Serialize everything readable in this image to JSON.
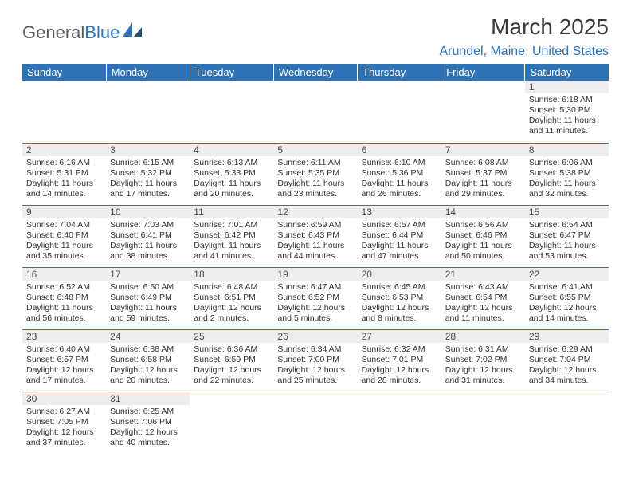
{
  "brand": {
    "part1": "General",
    "part2": "Blue"
  },
  "title": "March 2025",
  "location": "Arundel, Maine, United States",
  "colors": {
    "header_bg": "#2f72b5",
    "header_text": "#ffffff",
    "daynum_bg": "#eeeeee",
    "cell_border": "#2f72b5",
    "body_text": "#333333",
    "location_text": "#2f72b5"
  },
  "weekdays": [
    "Sunday",
    "Monday",
    "Tuesday",
    "Wednesday",
    "Thursday",
    "Friday",
    "Saturday"
  ],
  "weeks": [
    [
      null,
      null,
      null,
      null,
      null,
      null,
      {
        "n": "1",
        "sr": "Sunrise: 6:18 AM",
        "ss": "Sunset: 5:30 PM",
        "dl1": "Daylight: 11 hours",
        "dl2": "and 11 minutes."
      }
    ],
    [
      {
        "n": "2",
        "sr": "Sunrise: 6:16 AM",
        "ss": "Sunset: 5:31 PM",
        "dl1": "Daylight: 11 hours",
        "dl2": "and 14 minutes."
      },
      {
        "n": "3",
        "sr": "Sunrise: 6:15 AM",
        "ss": "Sunset: 5:32 PM",
        "dl1": "Daylight: 11 hours",
        "dl2": "and 17 minutes."
      },
      {
        "n": "4",
        "sr": "Sunrise: 6:13 AM",
        "ss": "Sunset: 5:33 PM",
        "dl1": "Daylight: 11 hours",
        "dl2": "and 20 minutes."
      },
      {
        "n": "5",
        "sr": "Sunrise: 6:11 AM",
        "ss": "Sunset: 5:35 PM",
        "dl1": "Daylight: 11 hours",
        "dl2": "and 23 minutes."
      },
      {
        "n": "6",
        "sr": "Sunrise: 6:10 AM",
        "ss": "Sunset: 5:36 PM",
        "dl1": "Daylight: 11 hours",
        "dl2": "and 26 minutes."
      },
      {
        "n": "7",
        "sr": "Sunrise: 6:08 AM",
        "ss": "Sunset: 5:37 PM",
        "dl1": "Daylight: 11 hours",
        "dl2": "and 29 minutes."
      },
      {
        "n": "8",
        "sr": "Sunrise: 6:06 AM",
        "ss": "Sunset: 5:38 PM",
        "dl1": "Daylight: 11 hours",
        "dl2": "and 32 minutes."
      }
    ],
    [
      {
        "n": "9",
        "sr": "Sunrise: 7:04 AM",
        "ss": "Sunset: 6:40 PM",
        "dl1": "Daylight: 11 hours",
        "dl2": "and 35 minutes."
      },
      {
        "n": "10",
        "sr": "Sunrise: 7:03 AM",
        "ss": "Sunset: 6:41 PM",
        "dl1": "Daylight: 11 hours",
        "dl2": "and 38 minutes."
      },
      {
        "n": "11",
        "sr": "Sunrise: 7:01 AM",
        "ss": "Sunset: 6:42 PM",
        "dl1": "Daylight: 11 hours",
        "dl2": "and 41 minutes."
      },
      {
        "n": "12",
        "sr": "Sunrise: 6:59 AM",
        "ss": "Sunset: 6:43 PM",
        "dl1": "Daylight: 11 hours",
        "dl2": "and 44 minutes."
      },
      {
        "n": "13",
        "sr": "Sunrise: 6:57 AM",
        "ss": "Sunset: 6:44 PM",
        "dl1": "Daylight: 11 hours",
        "dl2": "and 47 minutes."
      },
      {
        "n": "14",
        "sr": "Sunrise: 6:56 AM",
        "ss": "Sunset: 6:46 PM",
        "dl1": "Daylight: 11 hours",
        "dl2": "and 50 minutes."
      },
      {
        "n": "15",
        "sr": "Sunrise: 6:54 AM",
        "ss": "Sunset: 6:47 PM",
        "dl1": "Daylight: 11 hours",
        "dl2": "and 53 minutes."
      }
    ],
    [
      {
        "n": "16",
        "sr": "Sunrise: 6:52 AM",
        "ss": "Sunset: 6:48 PM",
        "dl1": "Daylight: 11 hours",
        "dl2": "and 56 minutes."
      },
      {
        "n": "17",
        "sr": "Sunrise: 6:50 AM",
        "ss": "Sunset: 6:49 PM",
        "dl1": "Daylight: 11 hours",
        "dl2": "and 59 minutes."
      },
      {
        "n": "18",
        "sr": "Sunrise: 6:48 AM",
        "ss": "Sunset: 6:51 PM",
        "dl1": "Daylight: 12 hours",
        "dl2": "and 2 minutes."
      },
      {
        "n": "19",
        "sr": "Sunrise: 6:47 AM",
        "ss": "Sunset: 6:52 PM",
        "dl1": "Daylight: 12 hours",
        "dl2": "and 5 minutes."
      },
      {
        "n": "20",
        "sr": "Sunrise: 6:45 AM",
        "ss": "Sunset: 6:53 PM",
        "dl1": "Daylight: 12 hours",
        "dl2": "and 8 minutes."
      },
      {
        "n": "21",
        "sr": "Sunrise: 6:43 AM",
        "ss": "Sunset: 6:54 PM",
        "dl1": "Daylight: 12 hours",
        "dl2": "and 11 minutes."
      },
      {
        "n": "22",
        "sr": "Sunrise: 6:41 AM",
        "ss": "Sunset: 6:55 PM",
        "dl1": "Daylight: 12 hours",
        "dl2": "and 14 minutes."
      }
    ],
    [
      {
        "n": "23",
        "sr": "Sunrise: 6:40 AM",
        "ss": "Sunset: 6:57 PM",
        "dl1": "Daylight: 12 hours",
        "dl2": "and 17 minutes."
      },
      {
        "n": "24",
        "sr": "Sunrise: 6:38 AM",
        "ss": "Sunset: 6:58 PM",
        "dl1": "Daylight: 12 hours",
        "dl2": "and 20 minutes."
      },
      {
        "n": "25",
        "sr": "Sunrise: 6:36 AM",
        "ss": "Sunset: 6:59 PM",
        "dl1": "Daylight: 12 hours",
        "dl2": "and 22 minutes."
      },
      {
        "n": "26",
        "sr": "Sunrise: 6:34 AM",
        "ss": "Sunset: 7:00 PM",
        "dl1": "Daylight: 12 hours",
        "dl2": "and 25 minutes."
      },
      {
        "n": "27",
        "sr": "Sunrise: 6:32 AM",
        "ss": "Sunset: 7:01 PM",
        "dl1": "Daylight: 12 hours",
        "dl2": "and 28 minutes."
      },
      {
        "n": "28",
        "sr": "Sunrise: 6:31 AM",
        "ss": "Sunset: 7:02 PM",
        "dl1": "Daylight: 12 hours",
        "dl2": "and 31 minutes."
      },
      {
        "n": "29",
        "sr": "Sunrise: 6:29 AM",
        "ss": "Sunset: 7:04 PM",
        "dl1": "Daylight: 12 hours",
        "dl2": "and 34 minutes."
      }
    ],
    [
      {
        "n": "30",
        "sr": "Sunrise: 6:27 AM",
        "ss": "Sunset: 7:05 PM",
        "dl1": "Daylight: 12 hours",
        "dl2": "and 37 minutes."
      },
      {
        "n": "31",
        "sr": "Sunrise: 6:25 AM",
        "ss": "Sunset: 7:06 PM",
        "dl1": "Daylight: 12 hours",
        "dl2": "and 40 minutes."
      },
      null,
      null,
      null,
      null,
      null
    ]
  ]
}
